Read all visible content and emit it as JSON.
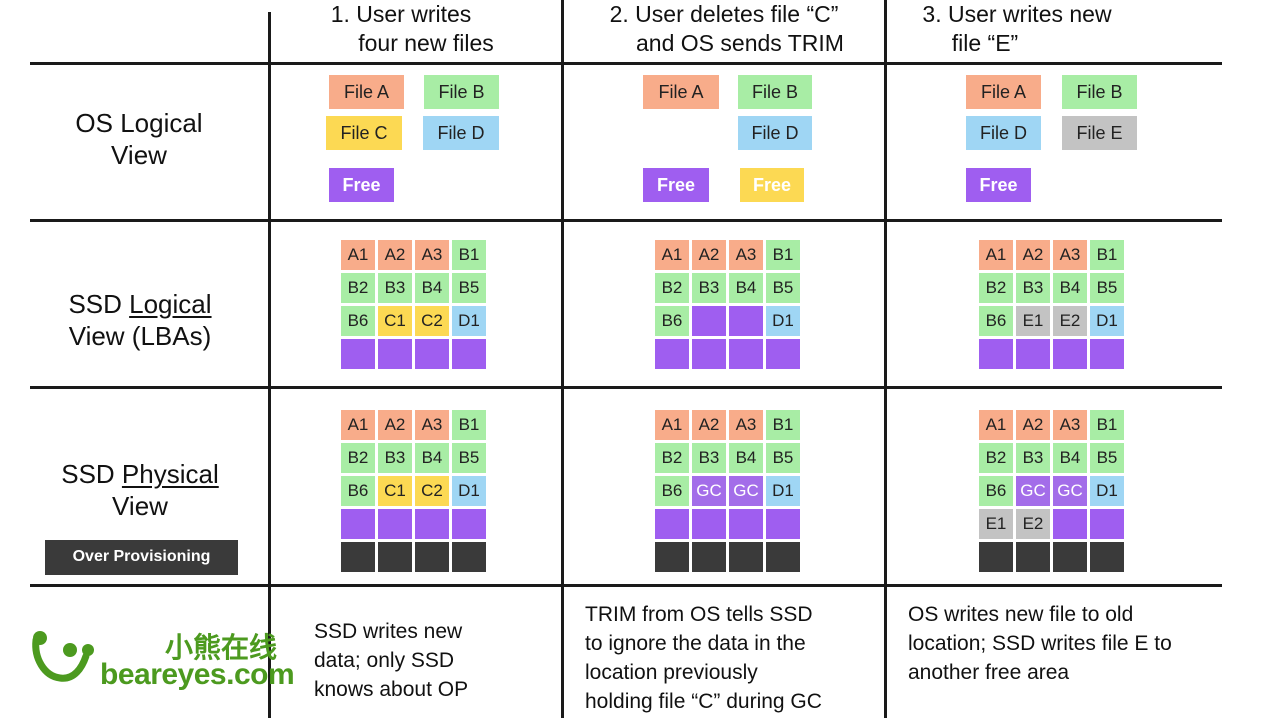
{
  "headers": [
    {
      "line1": "1. User writes",
      "line2": "four  new files"
    },
    {
      "line1": "2. User deletes file “C”",
      "line2": "and OS sends TRIM"
    },
    {
      "line1": "3. User writes new",
      "line2": "file “E”"
    }
  ],
  "rows": {
    "os_logical": {
      "line1": "OS Logical",
      "line2": "View"
    },
    "ssd_logical": {
      "line1_prefix": "SSD ",
      "line1_underlined": "Logical",
      "line2": "View (LBAs)"
    },
    "ssd_physical": {
      "line1_prefix": "SSD ",
      "line1_underlined": "Physical",
      "line2": "View",
      "badge": "Over Provisioning"
    }
  },
  "colors": {
    "file_a": "#f8ac8a",
    "file_b": "#a8eda5",
    "file_c": "#fcd953",
    "file_d": "#9fd6f4",
    "file_e": "#c3c3c3",
    "free": "#9f5ef0",
    "gc": "#a36de9",
    "op": "#3a3a3a",
    "line": "#1a1a1a",
    "watermark": "#4c9a1f"
  },
  "os_view": [
    {
      "tiles": [
        {
          "label": "File A",
          "color": "file_a"
        },
        {
          "label": "File B",
          "color": "file_b"
        },
        {
          "label": "File C",
          "color": "file_c"
        },
        {
          "label": "File D",
          "color": "file_d"
        },
        {
          "label": "Free",
          "color": "free"
        }
      ]
    },
    {
      "tiles": [
        {
          "label": "File A",
          "color": "file_a"
        },
        {
          "label": "File B",
          "color": "file_b"
        },
        {
          "label": "File D",
          "color": "file_d"
        },
        {
          "label": "Free",
          "color": "free"
        },
        {
          "label": "Free",
          "color": "file_c"
        }
      ]
    },
    {
      "tiles": [
        {
          "label": "File A",
          "color": "file_a"
        },
        {
          "label": "File B",
          "color": "file_b"
        },
        {
          "label": "File D",
          "color": "file_d"
        },
        {
          "label": "File E",
          "color": "file_e"
        },
        {
          "label": "Free",
          "color": "free"
        }
      ]
    }
  ],
  "ssd_logical_grids": [
    [
      [
        "A1",
        "A2",
        "A3",
        "B1"
      ],
      [
        "B2",
        "B3",
        "B4",
        "B5"
      ],
      [
        "B6",
        "C1",
        "C2",
        "D1"
      ],
      [
        "",
        "",
        "",
        ""
      ]
    ],
    [
      [
        "A1",
        "A2",
        "A3",
        "B1"
      ],
      [
        "B2",
        "B3",
        "B4",
        "B5"
      ],
      [
        "B6",
        "",
        "",
        "D1"
      ],
      [
        "",
        "",
        "",
        ""
      ]
    ],
    [
      [
        "A1",
        "A2",
        "A3",
        "B1"
      ],
      [
        "B2",
        "B3",
        "B4",
        "B5"
      ],
      [
        "B6",
        "E1",
        "E2",
        "D1"
      ],
      [
        "",
        "",
        "",
        ""
      ]
    ]
  ],
  "ssd_physical_grids": [
    [
      [
        "A1",
        "A2",
        "A3",
        "B1"
      ],
      [
        "B2",
        "B3",
        "B4",
        "B5"
      ],
      [
        "B6",
        "C1",
        "C2",
        "D1"
      ],
      [
        "",
        "",
        "",
        ""
      ],
      [
        "",
        "",
        "",
        ""
      ]
    ],
    [
      [
        "A1",
        "A2",
        "A3",
        "B1"
      ],
      [
        "B2",
        "B3",
        "B4",
        "B5"
      ],
      [
        "B6",
        "GC",
        "GC",
        "D1"
      ],
      [
        "",
        "",
        "",
        ""
      ],
      [
        "",
        "",
        "",
        ""
      ]
    ],
    [
      [
        "A1",
        "A2",
        "A3",
        "B1"
      ],
      [
        "B2",
        "B3",
        "B4",
        "B5"
      ],
      [
        "B6",
        "GC",
        "GC",
        "D1"
      ],
      [
        "E1",
        "E2",
        "",
        ""
      ],
      [
        "",
        "",
        "",
        ""
      ]
    ]
  ],
  "captions": [
    [
      "SSD writes new",
      "data; only SSD",
      "knows about OP"
    ],
    [
      "TRIM from OS tells SSD",
      "to ignore the data in the",
      "location previously",
      "holding file “C” during GC"
    ],
    [
      "OS writes new file to old",
      "location; SSD writes file E to",
      "another free area"
    ]
  ],
  "watermark": {
    "cn": "小熊在线",
    "en": "beareyes.com"
  }
}
